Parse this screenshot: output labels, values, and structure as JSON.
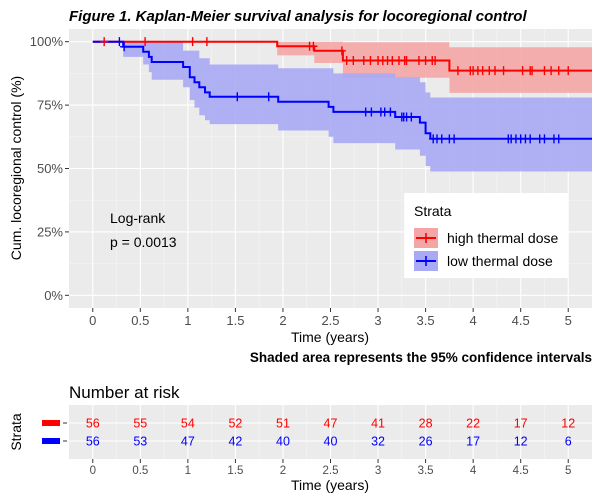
{
  "chart_data": [
    {
      "type": "line",
      "subtype": "kaplan-meier-survival",
      "title": "Figure 1. Kaplan-Meier survival analysis for locoregional control",
      "xlabel": "Time (years)",
      "ylabel": "Cum. locoregional control (%)",
      "xlim": [
        -0.25,
        5.25
      ],
      "ylim": [
        0,
        100
      ],
      "xticks": [
        "0",
        "0.5",
        "1",
        "1.5",
        "2",
        "2.5",
        "3",
        "3.5",
        "4",
        "4.5",
        "5"
      ],
      "yticks": [
        "0%",
        "25%",
        "50%",
        "75%",
        "100%"
      ],
      "grid": true,
      "legend_title": "Strata",
      "legend_position": "right",
      "annotation": {
        "line1": "Log-rank",
        "line2": "p = 0.0013"
      },
      "footnote": "Shaded area represents the 95% confidence intervals",
      "series": [
        {
          "name": "high thermal dose",
          "color": "#FF0000",
          "band_color": "#F4A6A6",
          "steps": [
            [
              0,
              100
            ],
            [
              1.94,
              98.2
            ],
            [
              2.33,
              96.4
            ],
            [
              2.63,
              92.6
            ],
            [
              3.75,
              88.6
            ],
            [
              5.25,
              88.6
            ]
          ],
          "ci_lower": [
            [
              0,
              100
            ],
            [
              1.94,
              94.6
            ],
            [
              2.33,
              91.6
            ],
            [
              2.63,
              85.8
            ],
            [
              3.75,
              79.8
            ],
            [
              5.25,
              79.8
            ]
          ],
          "ci_upper": [
            [
              0,
              100
            ],
            [
              2.63,
              99.8
            ],
            [
              3.75,
              97.8
            ],
            [
              5.25,
              97.8
            ]
          ],
          "censored": [
            0.12,
            0.55,
            1.05,
            1.2,
            2.28,
            2.32,
            2.62,
            2.67,
            2.74,
            2.85,
            2.92,
            3.0,
            3.05,
            3.1,
            3.15,
            3.22,
            3.28,
            3.3,
            3.43,
            3.5,
            3.57,
            3.6,
            3.84,
            3.97,
            4.0,
            4.05,
            4.1,
            4.17,
            4.23,
            4.32,
            4.52,
            4.6,
            4.62,
            4.75,
            4.82,
            4.9,
            5.0
          ]
        },
        {
          "name": "low thermal dose",
          "color": "#0000FF",
          "band_color": "#A9A9F5",
          "steps": [
            [
              0,
              100
            ],
            [
              0.32,
              98
            ],
            [
              0.53,
              96
            ],
            [
              0.59,
              94
            ],
            [
              0.62,
              92
            ],
            [
              0.95,
              90
            ],
            [
              1.02,
              86
            ],
            [
              1.07,
              84
            ],
            [
              1.12,
              82
            ],
            [
              1.18,
              80
            ],
            [
              1.23,
              78.3
            ],
            [
              1.95,
              76.3
            ],
            [
              2.48,
              74.3
            ],
            [
              2.53,
              72.3
            ],
            [
              3.18,
              70.3
            ],
            [
              3.44,
              68.1
            ],
            [
              3.5,
              63.9
            ],
            [
              3.55,
              61.7
            ],
            [
              5.25,
              61.7
            ]
          ],
          "ci_lower": [
            [
              0,
              100
            ],
            [
              0.32,
              94
            ],
            [
              0.53,
              91
            ],
            [
              0.59,
              88
            ],
            [
              0.62,
              85
            ],
            [
              0.95,
              82
            ],
            [
              1.02,
              77
            ],
            [
              1.07,
              74
            ],
            [
              1.12,
              71
            ],
            [
              1.18,
              69
            ],
            [
              1.23,
              67.5
            ],
            [
              1.95,
              65
            ],
            [
              2.48,
              62.5
            ],
            [
              2.53,
              60
            ],
            [
              3.18,
              57.5
            ],
            [
              3.44,
              55
            ],
            [
              3.5,
              51
            ],
            [
              3.55,
              48.8
            ],
            [
              5.25,
              48.8
            ]
          ],
          "ci_upper": [
            [
              0,
              100
            ],
            [
              0.53,
              99.8
            ],
            [
              0.95,
              96.5
            ],
            [
              1.12,
              93.5
            ],
            [
              1.23,
              91
            ],
            [
              1.95,
              89.5
            ],
            [
              2.53,
              87.5
            ],
            [
              3.18,
              86
            ],
            [
              3.44,
              84
            ],
            [
              3.5,
              80
            ],
            [
              3.55,
              78
            ],
            [
              5.25,
              78
            ]
          ],
          "censored": [
            0.28,
            0.33,
            1.52,
            1.85,
            2.87,
            2.93,
            3.03,
            3.07,
            3.13,
            3.25,
            3.27,
            3.3,
            3.35,
            3.58,
            3.62,
            3.67,
            3.75,
            3.8,
            4.37,
            4.4,
            4.45,
            4.5,
            4.55,
            4.6,
            4.7,
            4.75,
            4.85,
            4.9
          ]
        }
      ]
    },
    {
      "type": "table",
      "title": "Number at risk",
      "ylabel": "Strata",
      "xlabel": "Time (years)",
      "time_points": [
        "0",
        "0.5",
        "1",
        "1.5",
        "2",
        "2.5",
        "3",
        "3.5",
        "4",
        "4.5",
        "5"
      ],
      "rows": [
        {
          "color": "#FF0000",
          "values": [
            "56",
            "55",
            "54",
            "52",
            "51",
            "47",
            "41",
            "28",
            "22",
            "17",
            "12"
          ]
        },
        {
          "color": "#0000FF",
          "values": [
            "56",
            "53",
            "47",
            "42",
            "40",
            "40",
            "32",
            "26",
            "17",
            "12",
            "6"
          ]
        }
      ]
    }
  ],
  "colors": {
    "panel": "#EBEBEB",
    "grid_major": "#FFFFFF",
    "grid_minor": "#F5F5F5"
  }
}
